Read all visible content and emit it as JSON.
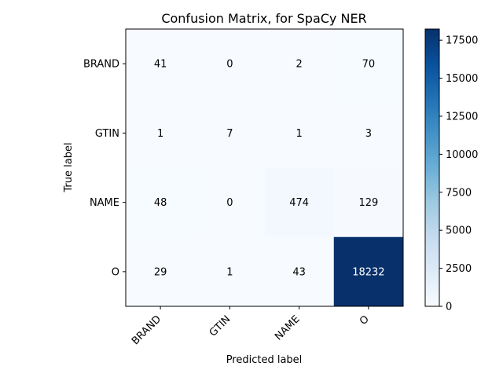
{
  "chart_data": {
    "type": "heatmap",
    "title": "Confusion Matrix, for SpaCy NER",
    "xlabel": "Predicted label",
    "ylabel": "True label",
    "x_categories": [
      "BRAND",
      "GTIN",
      "NAME",
      "O"
    ],
    "y_categories": [
      "BRAND",
      "GTIN",
      "NAME",
      "O"
    ],
    "values": [
      [
        41,
        0,
        2,
        70
      ],
      [
        1,
        7,
        1,
        3
      ],
      [
        48,
        0,
        474,
        129
      ],
      [
        29,
        1,
        43,
        18232
      ]
    ],
    "colormap": "Blues",
    "color_range": [
      0,
      18232
    ],
    "colorbar_ticks": [
      0,
      2500,
      5000,
      7500,
      10000,
      12500,
      15000,
      17500
    ],
    "text_color_dark": "#000000",
    "text_color_light": "#ffffff"
  }
}
